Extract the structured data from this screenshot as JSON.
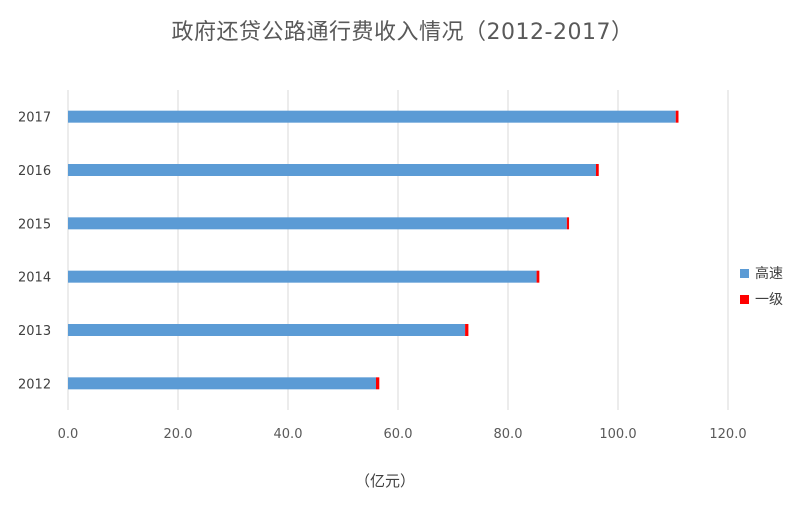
{
  "chart_data": {
    "type": "bar",
    "orientation": "horizontal",
    "stacked": true,
    "title": "政府还贷公路通行费收入情况（2012-2017）",
    "xlabel": "（亿元）",
    "ylabel": "",
    "categories": [
      "2012",
      "2013",
      "2014",
      "2015",
      "2016",
      "2017"
    ],
    "series": [
      {
        "name": "高速",
        "color": "#5B9BD5",
        "values": [
          56.0,
          72.2,
          85.2,
          90.7,
          96.0,
          110.5
        ]
      },
      {
        "name": "一级",
        "color": "#FF0000",
        "values": [
          0.6,
          0.6,
          0.5,
          0.4,
          0.5,
          0.5
        ]
      }
    ],
    "xlim": [
      0,
      120
    ],
    "xticks": [
      "0.0",
      "20.0",
      "40.0",
      "60.0",
      "80.0",
      "100.0",
      "120.0"
    ],
    "grid": true,
    "legend_position": "right"
  }
}
